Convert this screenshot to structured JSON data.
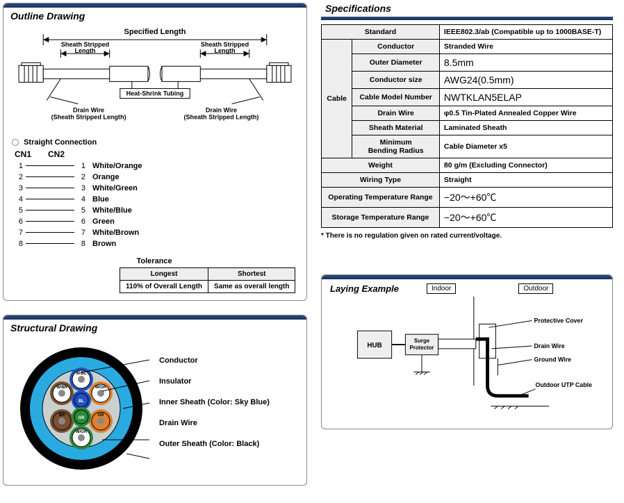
{
  "outline": {
    "title": "Outline Drawing",
    "spec_length": "Specified Length",
    "sheath_stripped": "Sheath Stripped\nLength",
    "heat_shrink": "Heat-Shrink Tubing",
    "drain_wire": "Drain Wire",
    "sheath_stripped_paren": "(Sheath Stripped Length)",
    "connection_type": "Straight Connection",
    "cn1": "CN1",
    "cn2": "CN2",
    "pins": [
      {
        "n": "1",
        "color": "White/Orange"
      },
      {
        "n": "2",
        "color": "Orange"
      },
      {
        "n": "3",
        "color": "White/Green"
      },
      {
        "n": "4",
        "color": "Blue"
      },
      {
        "n": "5",
        "color": "White/Blue"
      },
      {
        "n": "6",
        "color": "Green"
      },
      {
        "n": "7",
        "color": "White/Brown"
      },
      {
        "n": "8",
        "color": "Brown"
      }
    ],
    "tolerance": {
      "title": "Tolerance",
      "longest_h": "Longest",
      "shortest_h": "Shortest",
      "longest_v": "110% of Overall Length",
      "shortest_v": "Same as overall length"
    }
  },
  "specs": {
    "title": "Specifications",
    "note": "* There is no regulation given on rated current/voltage.",
    "rows": {
      "standard_l": "Standard",
      "standard_v": "IEEE802.3/ab (Compatible up to 1000BASE-T)",
      "cable_l": "Cable",
      "conductor_l": "Conductor",
      "conductor_v": "Stranded Wire",
      "outer_dia_l": "Outer Diameter",
      "outer_dia_v": "8.5mm",
      "cond_size_l": "Conductor size",
      "cond_size_v": "AWG24(0.5mm)",
      "model_l": "Cable Model Number",
      "model_v": "NWTKLAN5ELAP",
      "drain_l": "Drain Wire",
      "drain_v": "φ0.5 Tin-Plated Annealed Copper Wire",
      "sheath_l": "Sheath Material",
      "sheath_v": "Laminated Sheath",
      "bend_l": "Minimum\nBending Radius",
      "bend_v": "Cable Diameter x5",
      "weight_l": "Weight",
      "weight_v": "80 g/m (Excluding Connector)",
      "wiring_l": "Wiring Type",
      "wiring_v": "Straight",
      "op_temp_l": "Operating Temperature Range",
      "op_temp_v": "−20〜+60℃",
      "st_temp_l": "Storage Temperature Range",
      "st_temp_v": "−20〜+60℃"
    }
  },
  "structural": {
    "title": "Structural Drawing",
    "outer_color": "#000000",
    "inner_color": "#29abe2",
    "core_color": "#c8d0d0",
    "wire_labels": [
      "W/BL",
      "BL",
      "W/OR",
      "W/BR",
      "BR",
      "GR",
      "OR",
      "W/GR"
    ],
    "wire_colors": {
      "white": "#ffffff",
      "blue": "#2050c0",
      "orange": "#e08030",
      "brown": "#7a5030",
      "green": "#2a8a3a"
    },
    "labels": {
      "conductor": "Conductor",
      "insulator": "Insulator",
      "inner_sheath": "Inner Sheath (Color: Sky Blue)",
      "drain_wire": "Drain Wire",
      "outer_sheath": "Outer Sheath (Color: Black)"
    }
  },
  "laying": {
    "title": "Laying Example",
    "indoor": "Indoor",
    "outdoor": "Outdoor",
    "hub": "HUB",
    "surge": "Surge\nProtector",
    "protective": "Protective Cover",
    "drain": "Drain Wire",
    "ground": "Ground Wire",
    "utp": "Outdoor UTP Cable"
  }
}
